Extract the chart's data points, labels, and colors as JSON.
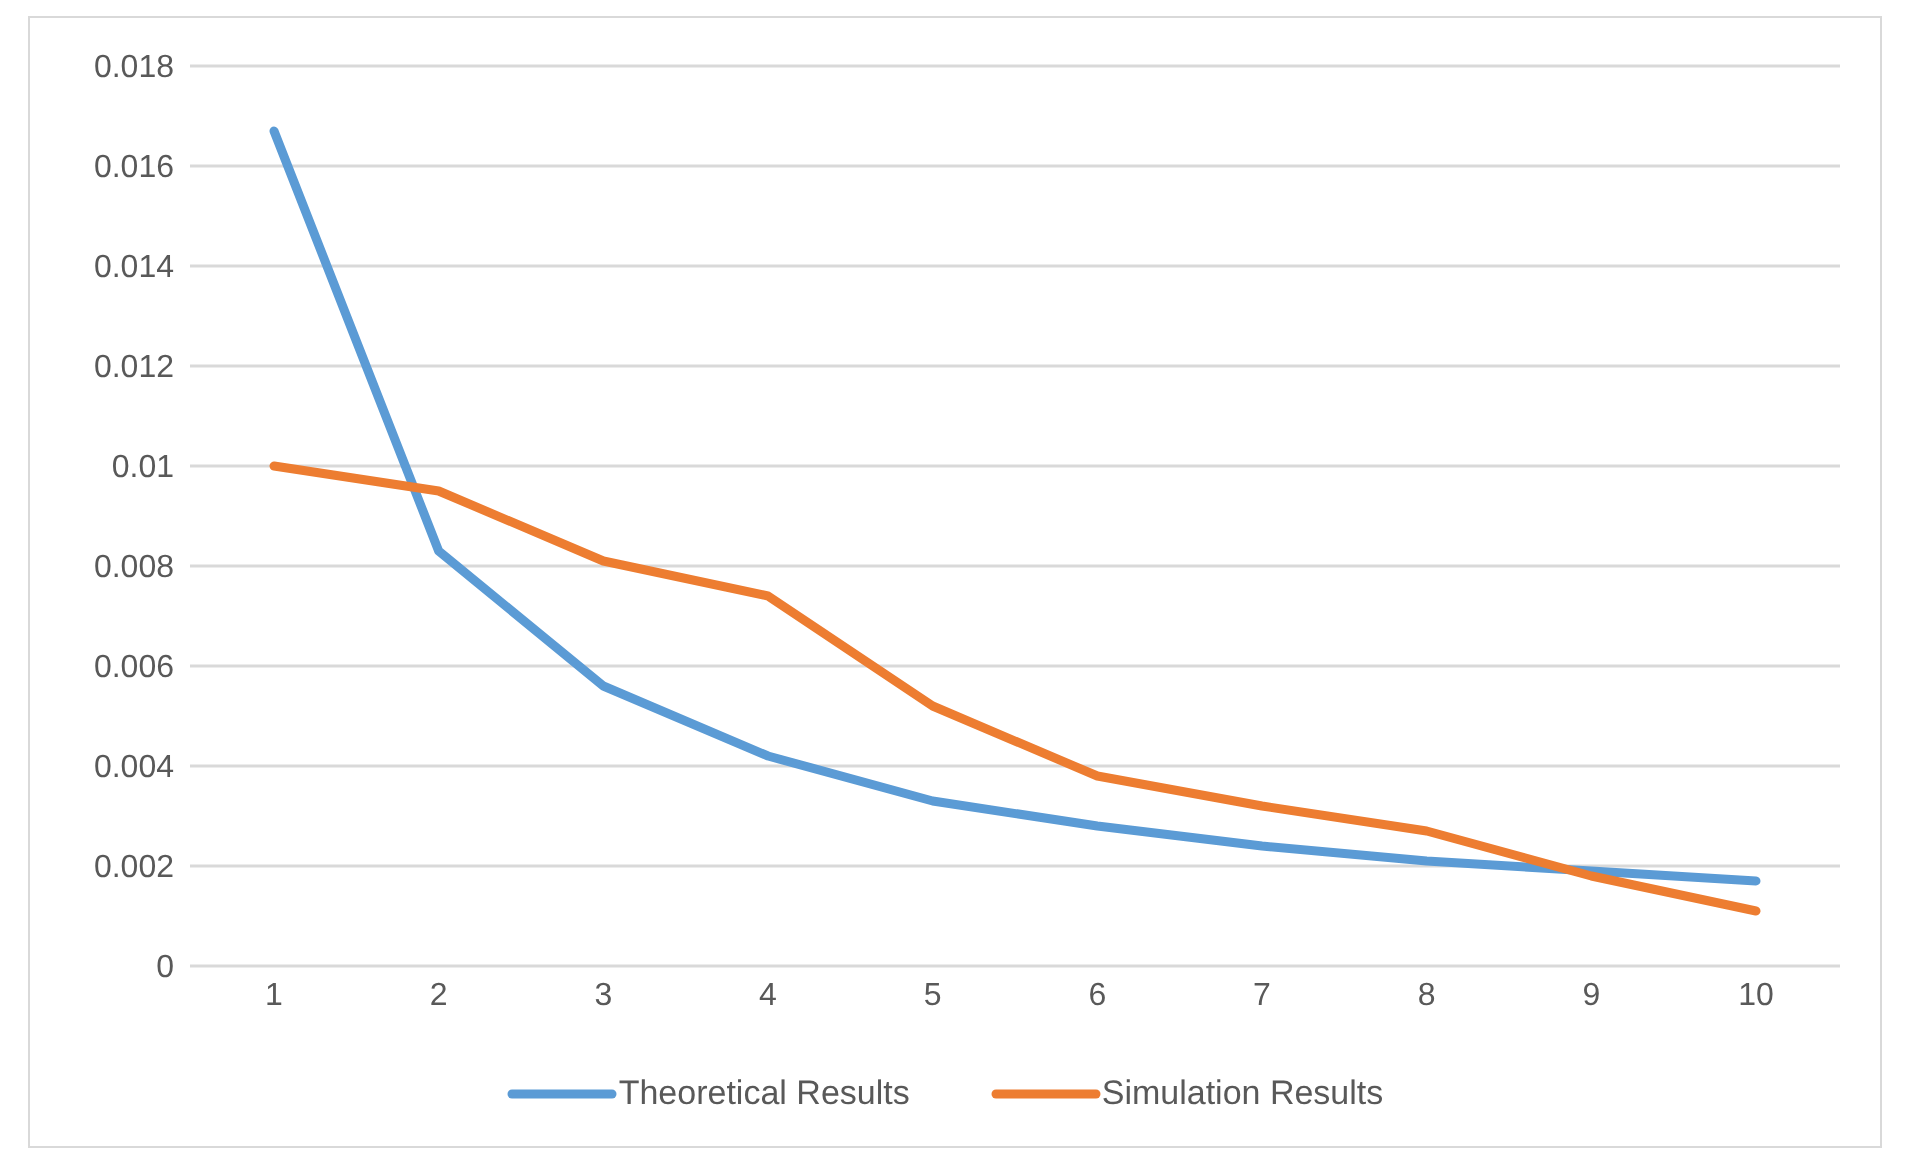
{
  "chart_data": {
    "type": "line",
    "categories": [
      "1",
      "2",
      "3",
      "4",
      "5",
      "6",
      "7",
      "8",
      "9",
      "10"
    ],
    "series": [
      {
        "name": "Theoretical Results",
        "color": "#5b9bd5",
        "values": [
          0.0167,
          0.0083,
          0.0056,
          0.0042,
          0.0033,
          0.0028,
          0.0024,
          0.0021,
          0.0019,
          0.0017
        ]
      },
      {
        "name": "Simulation Results",
        "color": "#ed7d31",
        "values": [
          0.01,
          0.0095,
          0.0081,
          0.0074,
          0.0052,
          0.0038,
          0.0032,
          0.0027,
          0.0018,
          0.0011
        ]
      }
    ],
    "ylim": [
      0,
      0.018
    ],
    "yticks": [
      0,
      0.002,
      0.004,
      0.006,
      0.008,
      0.01,
      0.012,
      0.014,
      0.016,
      0.018
    ],
    "grid": "y",
    "legend": "bottom",
    "marker": "none",
    "line_style": "solid"
  }
}
